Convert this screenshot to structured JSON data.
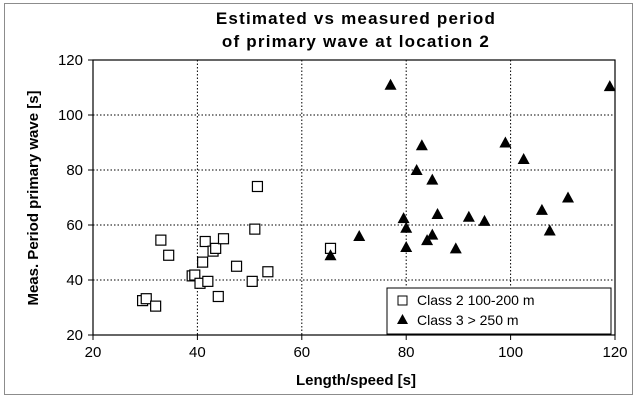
{
  "chart_data": {
    "type": "scatter",
    "title": [
      "Estimated  vs measured period",
      "of primary wave at location 2"
    ],
    "xlabel": "Length/speed [s]",
    "ylabel": "Meas. Period primary wave [s]",
    "xlim": [
      20,
      120
    ],
    "ylim": [
      20,
      120
    ],
    "xticks": [
      20,
      40,
      60,
      80,
      100,
      120
    ],
    "yticks": [
      20,
      40,
      60,
      80,
      100,
      120
    ],
    "grid": "dotted",
    "legend_position": "bottom-right",
    "series": [
      {
        "name": "Class 2 100-200 m",
        "marker": "open-square",
        "color": "#000000",
        "points": [
          [
            29.5,
            32.5
          ],
          [
            30.2,
            33.2
          ],
          [
            32.0,
            30.5
          ],
          [
            33.0,
            54.5
          ],
          [
            34.5,
            49.0
          ],
          [
            39.0,
            41.5
          ],
          [
            39.5,
            41.8
          ],
          [
            40.5,
            38.8
          ],
          [
            41.0,
            46.5
          ],
          [
            41.5,
            54.0
          ],
          [
            42.0,
            39.5
          ],
          [
            43.0,
            50.5
          ],
          [
            43.5,
            51.5
          ],
          [
            44.0,
            34.0
          ],
          [
            45.0,
            55.0
          ],
          [
            47.5,
            45.0
          ],
          [
            50.5,
            39.5
          ],
          [
            51.0,
            58.5
          ],
          [
            51.5,
            74.0
          ],
          [
            53.5,
            43.0
          ],
          [
            65.5,
            51.5
          ]
        ]
      },
      {
        "name": "Class 3 > 250 m",
        "marker": "filled-triangle",
        "color": "#000000",
        "points": [
          [
            65.5,
            49.0
          ],
          [
            71.0,
            56.0
          ],
          [
            77.0,
            111.0
          ],
          [
            79.5,
            62.5
          ],
          [
            80.0,
            59.0
          ],
          [
            80.0,
            52.0
          ],
          [
            82.0,
            80.0
          ],
          [
            83.0,
            89.0
          ],
          [
            84.0,
            54.5
          ],
          [
            85.0,
            76.5
          ],
          [
            85.0,
            56.5
          ],
          [
            86.0,
            64.0
          ],
          [
            89.5,
            51.5
          ],
          [
            92.0,
            63.0
          ],
          [
            95.0,
            61.5
          ],
          [
            99.0,
            90.0
          ],
          [
            102.5,
            84.0
          ],
          [
            106.0,
            65.5
          ],
          [
            107.5,
            58.0
          ],
          [
            111.0,
            70.0
          ],
          [
            119.0,
            110.5
          ]
        ]
      }
    ]
  }
}
